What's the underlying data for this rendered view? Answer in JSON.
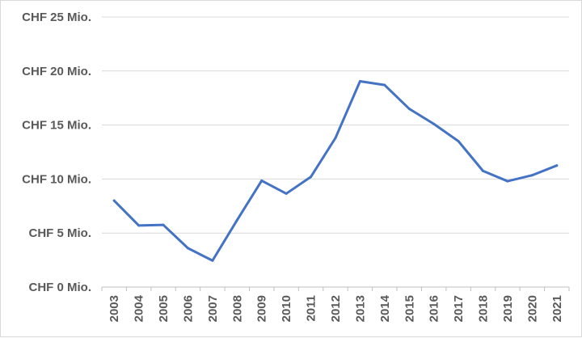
{
  "chart_data": {
    "type": "line",
    "title": "",
    "xlabel": "",
    "ylabel": "",
    "x": [
      "2003",
      "2004",
      "2005",
      "2006",
      "2007",
      "2008",
      "2009",
      "2010",
      "2011",
      "2012",
      "2013",
      "2014",
      "2015",
      "2016",
      "2017",
      "2018",
      "2019",
      "2020",
      "2021"
    ],
    "series": [
      {
        "values": [
          8.0,
          5.7,
          5.75,
          3.6,
          2.45,
          6.2,
          9.85,
          8.65,
          10.2,
          13.8,
          19.05,
          18.7,
          16.5,
          15.1,
          13.5,
          10.75,
          9.8,
          10.35,
          11.25
        ]
      }
    ],
    "ylim": [
      0,
      25
    ],
    "y_ticks": [
      {
        "value": 0,
        "label": "CHF 0 Mio."
      },
      {
        "value": 5,
        "label": "CHF 5 Mio."
      },
      {
        "value": 10,
        "label": "CHF 10 Mio."
      },
      {
        "value": 15,
        "label": "CHF 15 Mio."
      },
      {
        "value": 20,
        "label": "CHF 20 Mio."
      },
      {
        "value": 25,
        "label": "CHF 25 Mio."
      }
    ],
    "grid": true,
    "legend": "none",
    "colors": {
      "line": "#4472C4",
      "grid": "#d9d9d9",
      "axis": "#bfbfbf",
      "text": "#595959"
    }
  }
}
